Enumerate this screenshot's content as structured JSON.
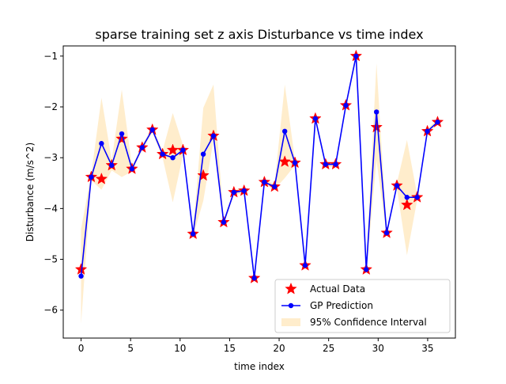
{
  "chart_data": {
    "type": "line",
    "title": "sparse training set z axis Disturbance vs time index",
    "xlabel": "time index",
    "ylabel": "Disturbance (m/s^2)",
    "xlim": [
      -1.8,
      37.8
    ],
    "ylim": [
      -6.55,
      -0.8
    ],
    "xticks": [
      0,
      5,
      10,
      15,
      20,
      25,
      30,
      35
    ],
    "yticks": [
      -6,
      -5,
      -4,
      -3,
      -2,
      -1
    ],
    "ytick_labels": [
      "−6",
      "−5",
      "−4",
      "−3",
      "−2",
      "−1"
    ],
    "legend_position": "lower-right",
    "x": [
      0,
      1.03,
      2.06,
      3.09,
      4.11,
      5.14,
      6.17,
      7.2,
      8.23,
      9.26,
      10.29,
      11.31,
      12.34,
      13.37,
      14.4,
      15.43,
      16.46,
      17.49,
      18.51,
      19.54,
      20.57,
      21.6,
      22.63,
      23.66,
      24.69,
      25.71,
      26.74,
      27.77,
      28.8,
      29.83,
      30.86,
      31.89,
      32.91,
      33.94,
      34.97,
      36.0
    ],
    "series": [
      {
        "name": "Actual Data",
        "kind": "scatter",
        "marker": "star",
        "color": "#ff0000",
        "values": [
          -5.2,
          -3.38,
          -3.42,
          -3.15,
          -2.63,
          -3.22,
          -2.8,
          -2.45,
          -2.93,
          -2.85,
          -2.85,
          -4.5,
          -3.35,
          -2.57,
          -4.27,
          -3.68,
          -3.65,
          -5.37,
          -3.48,
          -3.57,
          -3.08,
          -3.1,
          -5.12,
          -2.23,
          -3.13,
          -3.13,
          -1.97,
          -1.0,
          -5.2,
          -2.4,
          -4.48,
          -3.55,
          -3.93,
          -3.78,
          -2.48,
          -2.3
        ]
      },
      {
        "name": "GP Prediction",
        "kind": "line",
        "marker": "circle",
        "color": "#0000ff",
        "values": [
          -5.33,
          -3.38,
          -2.72,
          -3.15,
          -2.53,
          -3.22,
          -2.8,
          -2.45,
          -2.93,
          -3.0,
          -2.85,
          -4.5,
          -2.93,
          -2.57,
          -4.27,
          -3.68,
          -3.65,
          -5.37,
          -3.48,
          -3.57,
          -2.48,
          -3.1,
          -5.12,
          -2.23,
          -3.13,
          -3.13,
          -1.97,
          -1.0,
          -5.2,
          -2.1,
          -4.48,
          -3.55,
          -3.78,
          -3.78,
          -2.48,
          -2.3
        ]
      },
      {
        "name": "95% Confidence Interval",
        "kind": "band",
        "color": "#ffa500",
        "lower": [
          -6.27,
          -3.45,
          -3.63,
          -3.25,
          -3.38,
          -3.27,
          -2.85,
          -2.5,
          -3.0,
          -3.88,
          -2.95,
          -4.55,
          -3.85,
          -2.65,
          -4.32,
          -3.73,
          -3.7,
          -5.42,
          -3.53,
          -3.62,
          -3.4,
          -3.15,
          -5.17,
          -2.28,
          -3.18,
          -3.18,
          -2.02,
          -1.05,
          -5.25,
          -3.05,
          -4.53,
          -3.6,
          -4.92,
          -3.83,
          -2.53,
          -2.35
        ],
        "upper": [
          -4.4,
          -3.32,
          -1.82,
          -3.05,
          -1.66,
          -3.17,
          -2.75,
          -2.4,
          -2.86,
          -2.12,
          -2.75,
          -4.45,
          -2.02,
          -1.56,
          -4.22,
          -3.63,
          -3.6,
          -5.32,
          -3.43,
          -3.52,
          -1.56,
          -3.05,
          -5.07,
          -2.18,
          -3.08,
          -3.08,
          -1.92,
          -0.95,
          -5.15,
          -1.14,
          -4.43,
          -3.5,
          -2.65,
          -3.73,
          -2.43,
          -2.25
        ]
      }
    ]
  }
}
